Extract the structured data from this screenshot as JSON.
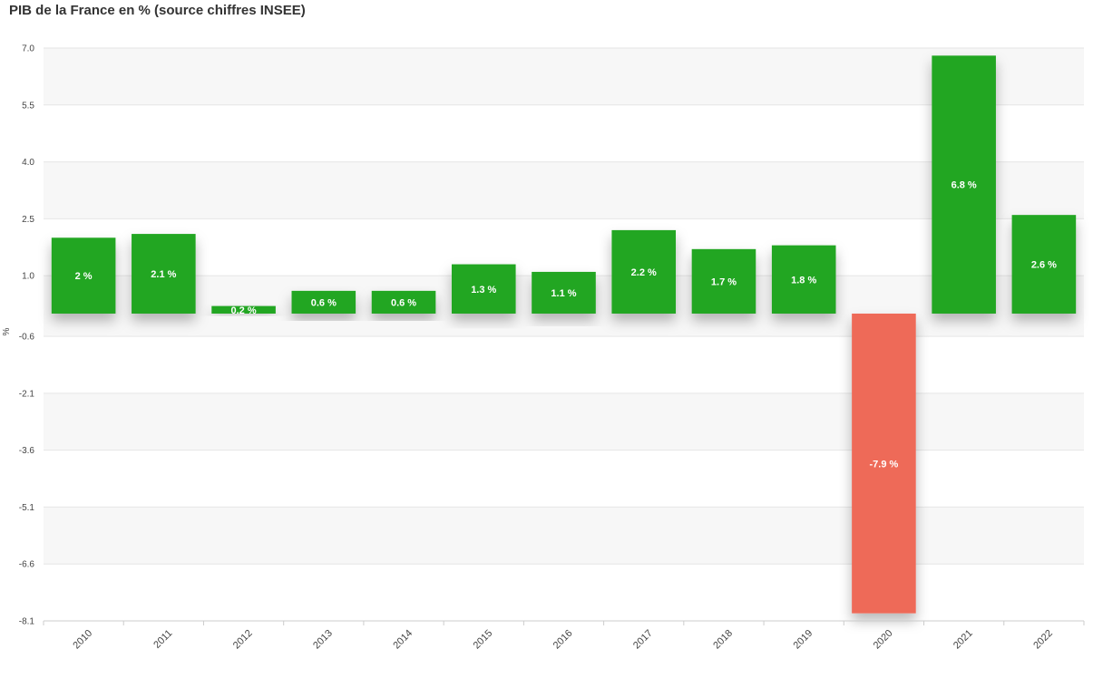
{
  "chart_data": {
    "type": "bar",
    "title": "PIB de la France en % (source chiffres INSEE)",
    "ylabel": "%",
    "xlabel": "",
    "categories": [
      "2010",
      "2011",
      "2012",
      "2013",
      "2014",
      "2015",
      "2016",
      "2017",
      "2018",
      "2019",
      "2020",
      "2021",
      "2022"
    ],
    "values": [
      2,
      2.1,
      0.2,
      0.6,
      0.6,
      1.3,
      1.1,
      2.2,
      1.7,
      1.8,
      -7.9,
      6.8,
      2.6
    ],
    "data_labels": [
      "2 %",
      "2.1 %",
      "0.2 %",
      "0.6 %",
      "0.6 %",
      "1.3 %",
      "1.1 %",
      "2.2 %",
      "1.7 %",
      "1.8 %",
      "-7.9 %",
      "6.8 %",
      "2.6 %"
    ],
    "yticks": [
      "7.0",
      "5.5",
      "4.0",
      "2.5",
      "1.0",
      "-0.6",
      "-2.1",
      "-3.6",
      "-5.1",
      "-6.6",
      "-8.1"
    ],
    "ytick_values": [
      7.0,
      5.5,
      4.0,
      2.5,
      1.0,
      -0.6,
      -2.1,
      -3.6,
      -5.1,
      -6.6,
      -8.1
    ],
    "ylim": [
      -8.1,
      7.0
    ],
    "grid": true,
    "colors": {
      "positive": "#22a622",
      "negative": "#ee6b58",
      "band": "#f7f7f7",
      "gridline": "#e6e6e6"
    }
  }
}
